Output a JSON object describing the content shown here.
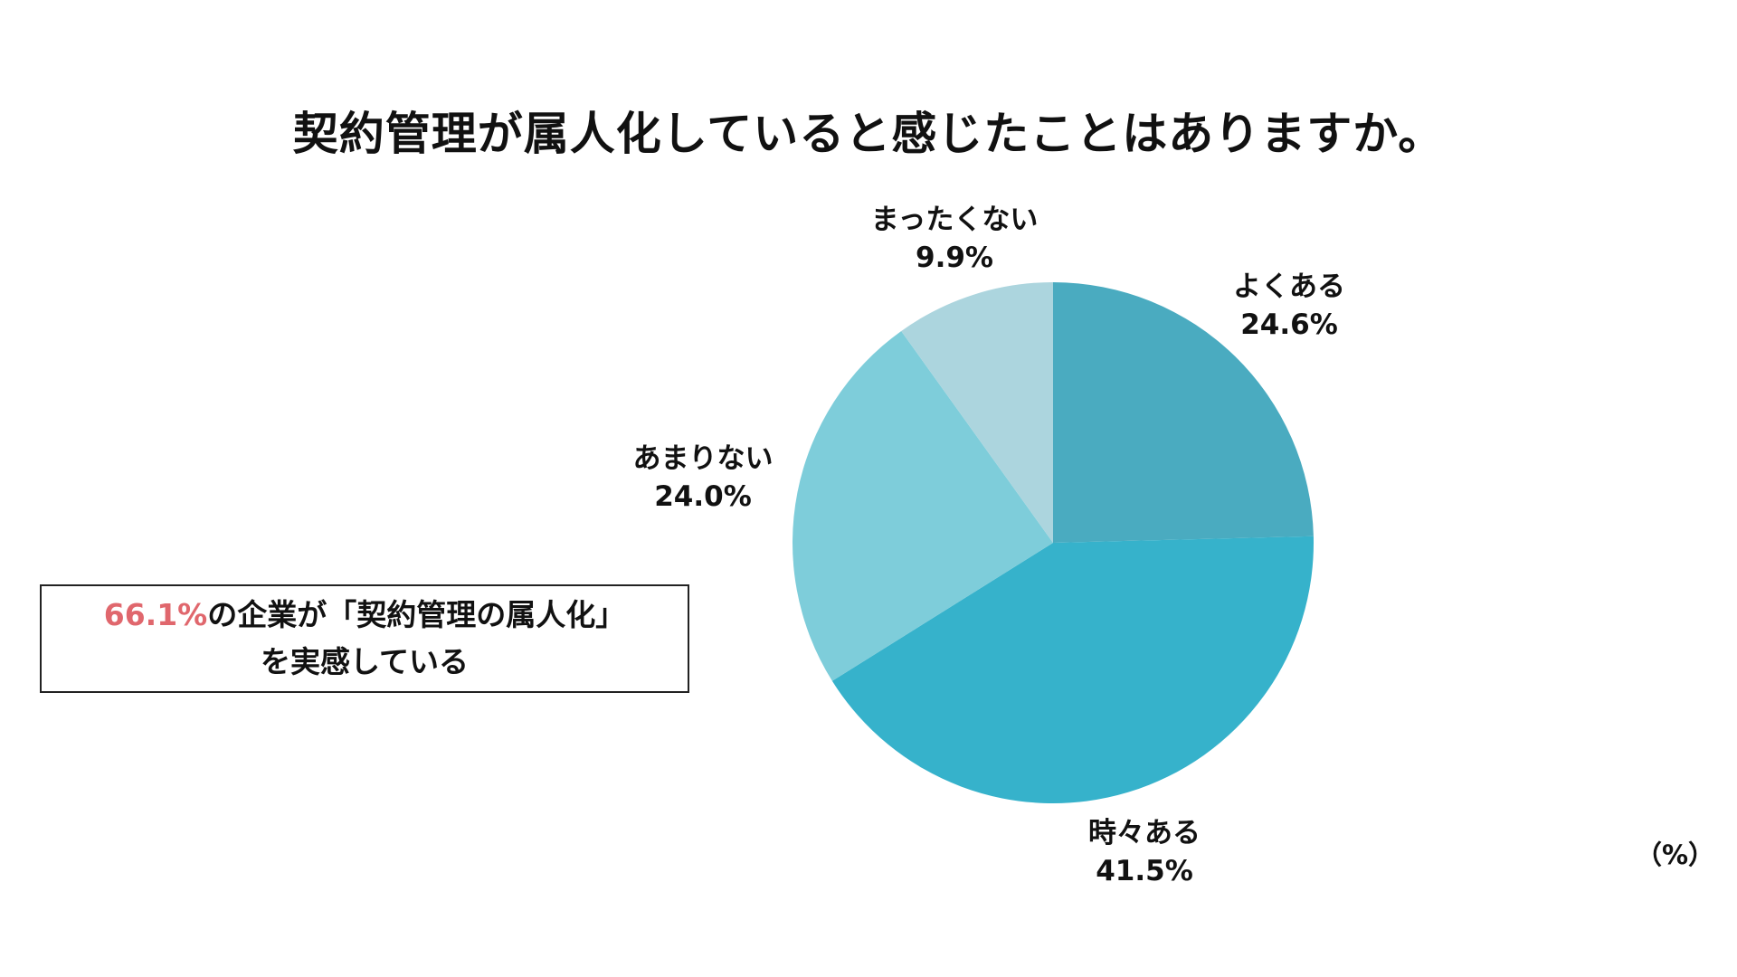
{
  "title": "契約管理が属人化していると感じたことはありますか。",
  "unit_label": "（%）",
  "callout": {
    "highlight": "66.1%",
    "line1_rest": "の企業が「契約管理の属人化」",
    "line2": "を実感している",
    "highlight_color": "#e0676d"
  },
  "chart_data": {
    "type": "pie",
    "title": "契約管理が属人化していると感じたことはありますか。",
    "start_angle": "12 o'clock",
    "direction": "clockwise",
    "slices": [
      {
        "label": "よくある",
        "value": 24.6,
        "value_label": "24.6%",
        "color": "#4aabc0"
      },
      {
        "label": "時々ある",
        "value": 41.5,
        "value_label": "41.5%",
        "color": "#36b2cb"
      },
      {
        "label": "あまりない",
        "value": 24.0,
        "value_label": "24.0%",
        "color": "#7ecdda"
      },
      {
        "label": "まったくない",
        "value": 9.9,
        "value_label": "9.9%",
        "color": "#acd5de"
      }
    ]
  }
}
